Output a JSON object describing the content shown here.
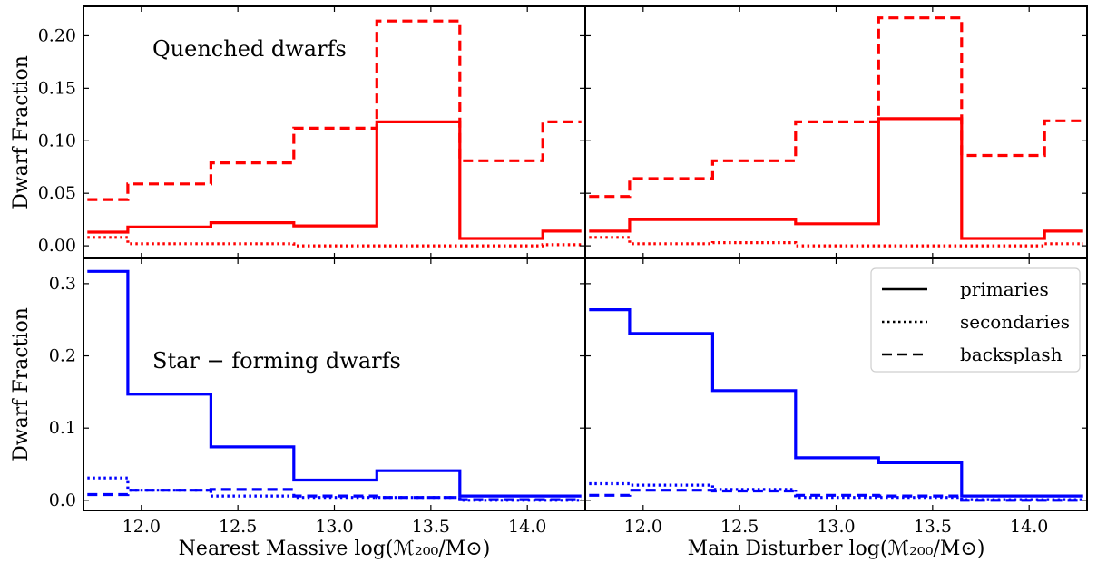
{
  "chart_data": [
    {
      "panel": "top-left",
      "type": "line",
      "drawstyle": "steps-post",
      "ylabel": "Dwarf Fraction",
      "xlabel": "",
      "annotation": "Quenched dwarfs",
      "xlim": [
        11.7,
        14.3
      ],
      "ylim": [
        -0.012,
        0.228
      ],
      "yticks": [
        0.0,
        0.05,
        0.1,
        0.15,
        0.2
      ],
      "yticklabels": [
        "0.00",
        "0.05",
        "0.10",
        "0.15",
        "0.20"
      ],
      "xticks": [
        12.0,
        12.5,
        13.0,
        13.5,
        14.0
      ],
      "xticklabels": [],
      "color": "#ff0000",
      "bin_edges": [
        11.72,
        11.93,
        12.36,
        12.79,
        13.22,
        13.65,
        14.08,
        14.28
      ],
      "series": [
        {
          "name": "primaries",
          "style": "solid",
          "values": [
            0.013,
            0.018,
            0.022,
            0.019,
            0.118,
            0.007,
            0.014
          ]
        },
        {
          "name": "secondaries",
          "style": "dotted",
          "values": [
            0.008,
            0.002,
            0.002,
            0.0,
            0.0,
            0.0,
            0.001
          ]
        },
        {
          "name": "backsplash",
          "style": "dashed",
          "values": [
            0.044,
            0.059,
            0.079,
            0.112,
            0.214,
            0.081,
            0.118
          ]
        }
      ]
    },
    {
      "panel": "top-right",
      "type": "line",
      "drawstyle": "steps-post",
      "ylabel": "",
      "xlabel": "",
      "xlim": [
        11.7,
        14.3
      ],
      "ylim": [
        -0.012,
        0.228
      ],
      "yticks": [
        0.0,
        0.05,
        0.1,
        0.15,
        0.2
      ],
      "yticklabels": [],
      "xticks": [
        12.0,
        12.5,
        13.0,
        13.5,
        14.0
      ],
      "xticklabels": [],
      "color": "#ff0000",
      "bin_edges": [
        11.72,
        11.93,
        12.36,
        12.79,
        13.22,
        13.65,
        14.08,
        14.28
      ],
      "series": [
        {
          "name": "primaries",
          "style": "solid",
          "values": [
            0.014,
            0.025,
            0.025,
            0.021,
            0.121,
            0.007,
            0.014
          ]
        },
        {
          "name": "secondaries",
          "style": "dotted",
          "values": [
            0.008,
            0.002,
            0.003,
            0.0,
            0.0,
            0.0,
            0.002
          ]
        },
        {
          "name": "backsplash",
          "style": "dashed",
          "values": [
            0.047,
            0.064,
            0.081,
            0.118,
            0.217,
            0.086,
            0.119
          ]
        }
      ]
    },
    {
      "panel": "bottom-left",
      "type": "line",
      "drawstyle": "steps-post",
      "ylabel": "Dwarf Fraction",
      "xlabel": "Nearest Massive log(ℳ₂₀₀/M⊙)",
      "annotation": "Star − forming dwarfs",
      "xlim": [
        11.7,
        14.3
      ],
      "ylim": [
        -0.014,
        0.335
      ],
      "yticks": [
        0.0,
        0.1,
        0.2,
        0.3
      ],
      "yticklabels": [
        "0.0",
        "0.1",
        "0.2",
        "0.3"
      ],
      "xticks": [
        12.0,
        12.5,
        13.0,
        13.5,
        14.0
      ],
      "xticklabels": [
        "12.0",
        "12.5",
        "13.0",
        "13.5",
        "14.0"
      ],
      "color": "#0000ff",
      "bin_edges": [
        11.72,
        11.93,
        12.36,
        12.79,
        13.22,
        13.65,
        14.08,
        14.28
      ],
      "series": [
        {
          "name": "primaries",
          "style": "solid",
          "values": [
            0.317,
            0.147,
            0.074,
            0.028,
            0.041,
            0.006,
            0.006
          ]
        },
        {
          "name": "secondaries",
          "style": "dotted",
          "values": [
            0.031,
            0.014,
            0.006,
            0.004,
            0.004,
            0.0,
            0.0
          ]
        },
        {
          "name": "backsplash",
          "style": "dashed",
          "values": [
            0.008,
            0.014,
            0.015,
            0.006,
            0.004,
            0.001,
            0.001
          ]
        }
      ]
    },
    {
      "panel": "bottom-right",
      "type": "line",
      "drawstyle": "steps-post",
      "ylabel": "",
      "xlabel": "Main Disturber log(ℳ₂₀₀/M⊙)",
      "xlim": [
        11.7,
        14.3
      ],
      "ylim": [
        -0.014,
        0.335
      ],
      "yticks": [
        0.0,
        0.1,
        0.2,
        0.3
      ],
      "yticklabels": [],
      "xticks": [
        12.0,
        12.5,
        13.0,
        13.5,
        14.0
      ],
      "xticklabels": [
        "12.0",
        "12.5",
        "13.0",
        "13.5",
        "14.0"
      ],
      "color": "#0000ff",
      "bin_edges": [
        11.72,
        11.93,
        12.36,
        12.79,
        13.22,
        13.65,
        14.08,
        14.28
      ],
      "legend": {
        "location": "upper right",
        "entries": [
          "primaries",
          "secondaries",
          "backsplash"
        ]
      },
      "series": [
        {
          "name": "primaries",
          "style": "solid",
          "values": [
            0.264,
            0.231,
            0.152,
            0.059,
            0.052,
            0.006,
            0.006
          ]
        },
        {
          "name": "secondaries",
          "style": "dotted",
          "values": [
            0.023,
            0.021,
            0.015,
            0.004,
            0.004,
            0.001,
            0.001
          ]
        },
        {
          "name": "backsplash",
          "style": "dashed",
          "values": [
            0.007,
            0.014,
            0.013,
            0.007,
            0.006,
            0.0,
            0.0
          ]
        }
      ]
    }
  ]
}
